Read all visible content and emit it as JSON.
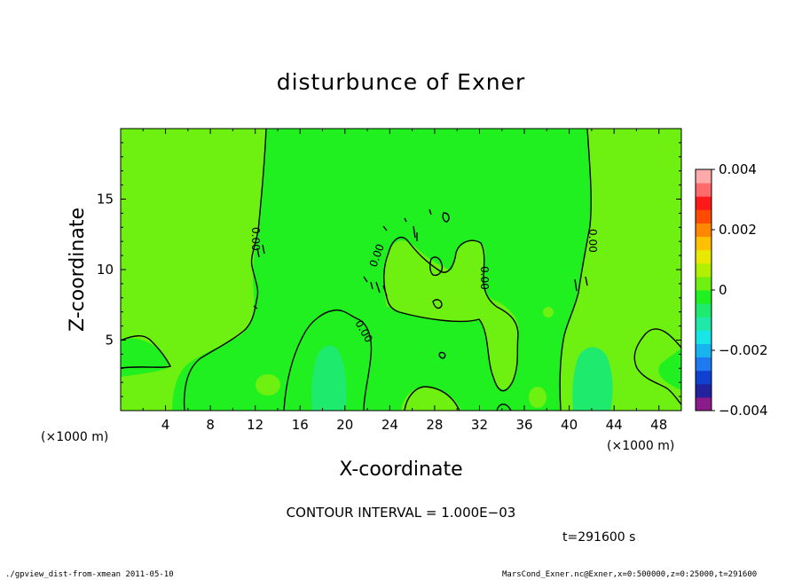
{
  "chart_data": {
    "type": "contour",
    "title": "disturbunce of Exner",
    "xlabel": "X-coordinate",
    "ylabel": "Z-coordinate",
    "x_unit_left": "(×1000 m)",
    "x_unit_right": "(×1000 m)",
    "xlim": [
      0,
      50
    ],
    "ylim": [
      0,
      20
    ],
    "x_ticks": [
      4,
      8,
      12,
      16,
      20,
      24,
      28,
      32,
      36,
      40,
      44,
      48
    ],
    "y_ticks": [
      5,
      10,
      15
    ],
    "colorbar": {
      "min": -0.004,
      "max": 0.004,
      "tick_values": [
        0.004,
        0.002,
        0,
        -0.002,
        -0.004
      ],
      "tick_labels": [
        "0.004",
        "0.002",
        "0",
        "−0.002",
        "−0.004"
      ],
      "colors": [
        "#8b1a8b",
        "#22229c",
        "#1040d0",
        "#1e7af0",
        "#18b4f0",
        "#18e6e6",
        "#1fe8a8",
        "#1eea6e",
        "#20f020",
        "#70f010",
        "#b0f000",
        "#e8e800",
        "#ffc000",
        "#ff8800",
        "#ff4a00",
        "#ff1a1a",
        "#ff6a6a",
        "#ffaaaa"
      ]
    },
    "contour_labels": [
      "0.00",
      "0.00",
      "0.00",
      "0.00",
      "0.00"
    ],
    "contour_interval_text": "CONTOUR INTERVAL = 1.000E−03",
    "time_text": "t=291600 s"
  },
  "footer": {
    "left": "./gpview_dist-from-xmean  2011-05-10",
    "right": "MarsCond_Exner.nc@Exner,x=0:500000,z=0:25000,t=291600"
  },
  "colors": {
    "field_base": "#20f020",
    "positive_tint": "#6ef010",
    "negative_tint": "#1eea6e",
    "contour_line": "#000000"
  }
}
